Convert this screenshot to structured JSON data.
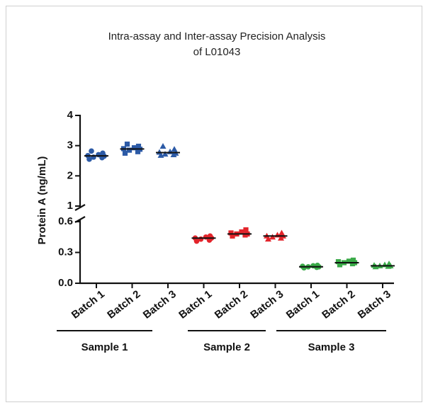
{
  "chart_data": {
    "type": "dot",
    "title": [
      "Intra-assay and Inter-assay Precision Analysis",
      "of L01043"
    ],
    "ylabel": "Protein A (ng/mL)",
    "ylim_upper": [
      1,
      4
    ],
    "yticks_upper": [
      1,
      2,
      3,
      4
    ],
    "ylim_lower": [
      0,
      0.6
    ],
    "yticks_lower": [
      {
        "value": 0,
        "label": "0.0"
      },
      0.3,
      0.6
    ],
    "markers": [
      "circle",
      "square",
      "triangle"
    ],
    "series": [
      {
        "name": "Sample 1",
        "color": "#2c5aa6",
        "categories": [
          "Batch 1",
          "Batch 2",
          "Batch 3"
        ],
        "values": [
          [
            2.55,
            2.6,
            2.62,
            2.65,
            2.67,
            2.7,
            2.75,
            2.82
          ],
          [
            2.75,
            2.8,
            2.85,
            2.88,
            2.9,
            2.93,
            2.98,
            3.05
          ],
          [
            2.68,
            2.7,
            2.72,
            2.75,
            2.78,
            2.8,
            2.88,
            2.98
          ]
        ],
        "means": [
          2.66,
          2.89,
          2.77
        ]
      },
      {
        "name": "Sample 2",
        "color": "#e3242b",
        "categories": [
          "Batch 1",
          "Batch 2",
          "Batch 3"
        ],
        "values": [
          [
            0.41,
            0.42,
            0.43,
            0.44,
            0.44,
            0.45,
            0.46
          ],
          [
            0.46,
            0.47,
            0.48,
            0.48,
            0.49,
            0.5,
            0.52
          ],
          [
            0.43,
            0.44,
            0.45,
            0.46,
            0.46,
            0.47,
            0.49
          ]
        ],
        "means": [
          0.44,
          0.48,
          0.46
        ]
      },
      {
        "name": "Sample 3",
        "color": "#3aaa48",
        "categories": [
          "Batch 1",
          "Batch 2",
          "Batch 3"
        ],
        "values": [
          [
            0.15,
            0.155,
            0.16,
            0.16,
            0.165,
            0.17,
            0.175
          ],
          [
            0.18,
            0.19,
            0.2,
            0.2,
            0.21,
            0.215,
            0.225
          ],
          [
            0.16,
            0.165,
            0.17,
            0.17,
            0.175,
            0.18,
            0.19
          ]
        ],
        "means": [
          0.16,
          0.2,
          0.17
        ]
      }
    ]
  }
}
